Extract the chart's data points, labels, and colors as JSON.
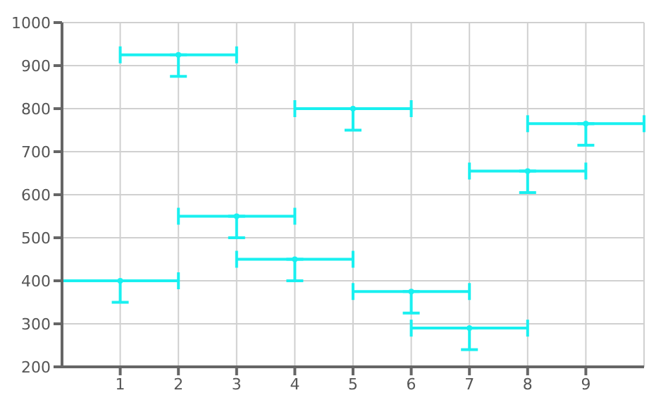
{
  "chart_data": {
    "type": "scatter",
    "x": [
      1,
      2,
      3,
      4,
      5,
      6,
      7,
      8,
      9
    ],
    "series": [
      {
        "color": "#19f0f0",
        "values": [
          400,
          925,
          550,
          450,
          800,
          375,
          290,
          655,
          765
        ],
        "errors": [
          [
            350,
            400
          ],
          [
            875,
            925
          ],
          [
            500,
            550
          ],
          [
            400,
            450
          ],
          [
            750,
            800
          ],
          [
            325,
            375
          ],
          [
            240,
            290
          ],
          [
            605,
            655
          ],
          [
            715,
            765
          ]
        ],
        "xerrors": [
          1,
          1,
          1,
          1,
          1,
          1,
          1,
          1,
          1
        ]
      }
    ],
    "xlim": [
      0,
      10
    ],
    "xticks": [
      1,
      2,
      3,
      4,
      5,
      6,
      7,
      8,
      9
    ],
    "ylim": [
      200,
      1000
    ],
    "yticks": [
      200,
      300,
      400,
      500,
      600,
      700,
      800,
      900,
      1000
    ],
    "grid": true
  }
}
